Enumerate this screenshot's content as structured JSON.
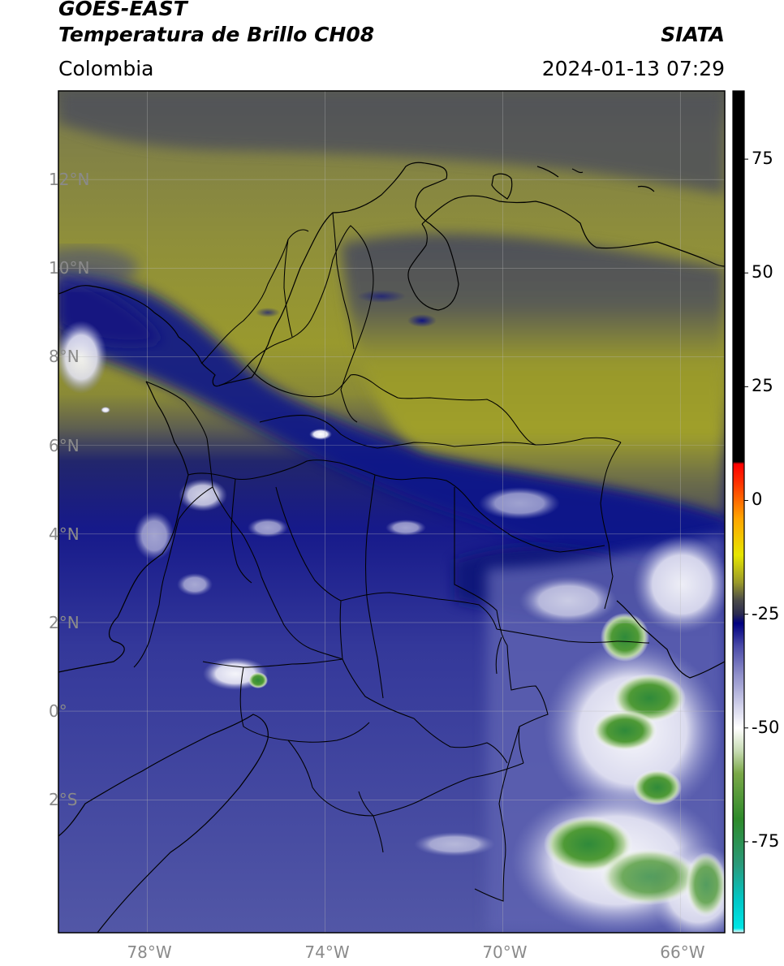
{
  "header": {
    "satellite": "GOES-EAST",
    "product": "Temperatura de Brillo CH08",
    "region": "Colombia",
    "source": "SIATA",
    "datetime": "2024-01-13 07:29"
  },
  "axes": {
    "lat_labels": [
      "12°N",
      "10°N",
      "8°N",
      "6°N",
      "4°N",
      "2°N",
      "0°",
      "2°S"
    ],
    "lat_values": [
      12,
      10,
      8,
      6,
      4,
      2,
      0,
      -2
    ],
    "lon_labels": [
      "78°W",
      "74°W",
      "70°W",
      "66°W"
    ],
    "lon_values": [
      -78,
      -74,
      -70,
      -66
    ],
    "lat_range": [
      -5,
      14
    ],
    "lon_range": [
      -80,
      -65
    ]
  },
  "colorbar": {
    "tick_labels": [
      "75",
      "50",
      "25",
      "0",
      "-25",
      "-50",
      "-75"
    ],
    "tick_values": [
      75,
      50,
      25,
      0,
      -25,
      -50,
      -75
    ],
    "range": [
      -95,
      90
    ],
    "stops": [
      {
        "v": -95,
        "c": "#ffffff"
      },
      {
        "v": -94,
        "c": "#00e6e6"
      },
      {
        "v": -88,
        "c": "#00c8c8"
      },
      {
        "v": -80,
        "c": "#2a9a7a"
      },
      {
        "v": -70,
        "c": "#2e8a2a"
      },
      {
        "v": -60,
        "c": "#7aa848"
      },
      {
        "v": -55,
        "c": "#c8dcb4"
      },
      {
        "v": -50,
        "c": "#ffffff"
      },
      {
        "v": -45,
        "c": "#d0d0ea"
      },
      {
        "v": -38,
        "c": "#8c8cc8"
      },
      {
        "v": -32,
        "c": "#4a4aa8"
      },
      {
        "v": -27,
        "c": "#000080"
      },
      {
        "v": -25,
        "c": "#2a2a50"
      },
      {
        "v": -22,
        "c": "#4a4a4a"
      },
      {
        "v": -18,
        "c": "#9a9a2a"
      },
      {
        "v": -12,
        "c": "#e6e600"
      },
      {
        "v": -4,
        "c": "#ffa500"
      },
      {
        "v": 4,
        "c": "#ff3000"
      },
      {
        "v": 8,
        "c": "#ff0000"
      },
      {
        "v": 8.5,
        "c": "#000000"
      },
      {
        "v": 90,
        "c": "#000000"
      }
    ]
  },
  "colors": {
    "warm_background": "#9b9b2e",
    "dark_gray_cloud": "#4b4d58",
    "navy_band": "#1a1e8a",
    "cold_blue": "#5a5fae",
    "very_cold_white": "#f4f4fb",
    "deep_convection_green": "#3f8d30"
  }
}
